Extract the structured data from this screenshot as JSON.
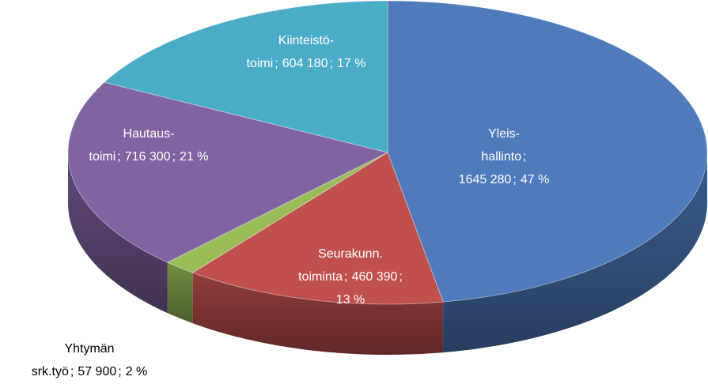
{
  "chart_data": {
    "type": "pie",
    "categories": [
      [
        "Yleis-",
        "hallinto"
      ],
      [
        "Seurakunn.",
        "toiminta"
      ],
      [
        "Yhtymän",
        "srk.työ"
      ],
      [
        "Hautaus-",
        "toimi"
      ],
      [
        "Kiinteistö-",
        "toimi"
      ]
    ],
    "values": [
      1645280,
      460390,
      57900,
      716300,
      604180
    ],
    "value_labels": [
      "1645 280",
      "460 390",
      "57 900",
      "716 300",
      "604 180"
    ],
    "percents": [
      47,
      13,
      2,
      21,
      17
    ],
    "percent_labels": [
      "47 %",
      "13 %",
      "2 %",
      "21 %",
      "17 %"
    ],
    "separator": ";",
    "colors": [
      "#4f7bbd",
      "#c0504d",
      "#9bbb59",
      "#8064a2",
      "#4bacc6"
    ]
  }
}
